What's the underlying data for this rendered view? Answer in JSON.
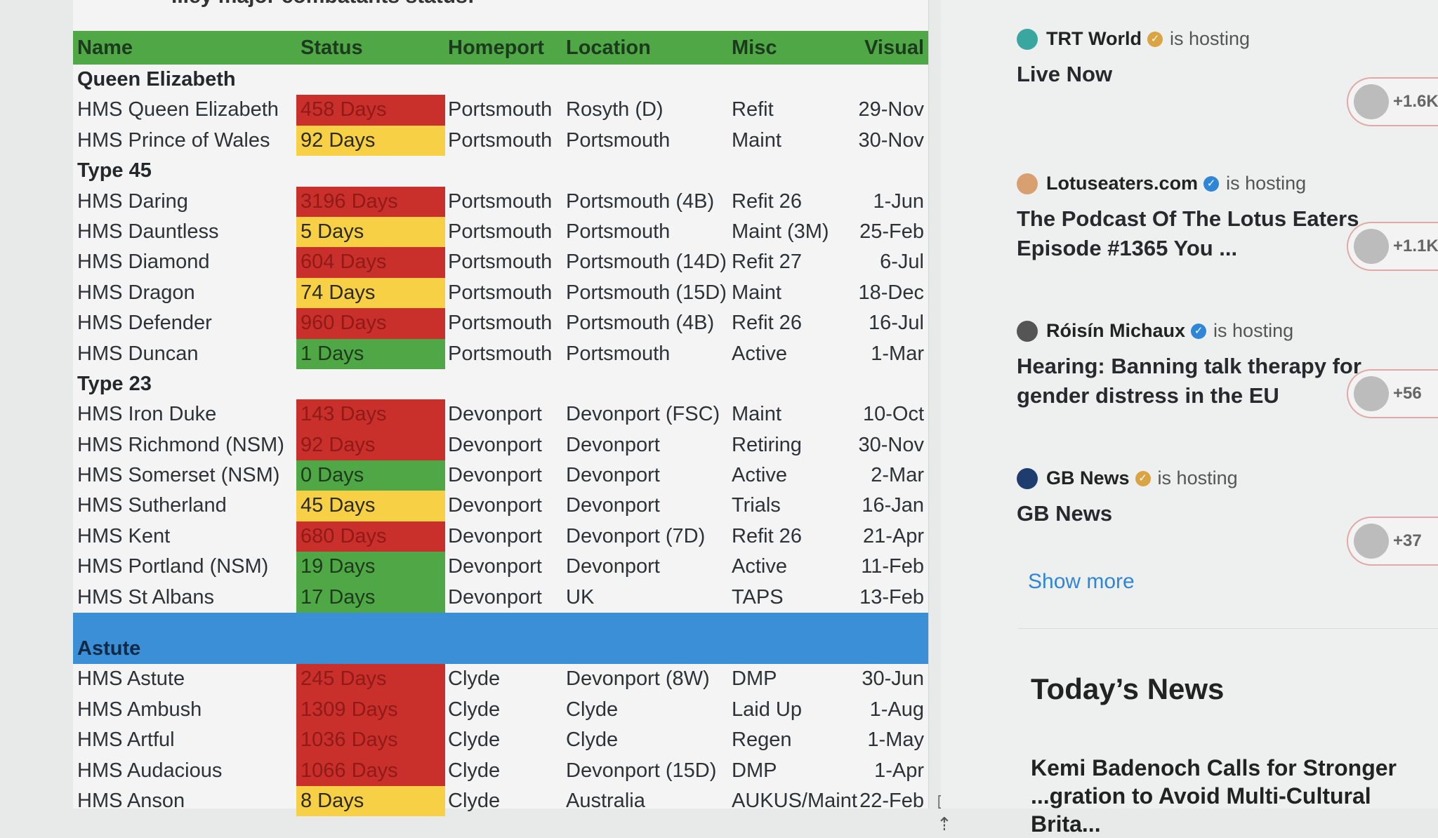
{
  "caption": "...ey major combatants status:",
  "table": {
    "headers": [
      "Name",
      "Status",
      "Homeport",
      "Location",
      "Misc",
      "Visual"
    ],
    "rows": [
      {
        "kind": "group",
        "name": "Queen Elizabeth"
      },
      {
        "kind": "ship",
        "name": "HMS Queen Elizabeth",
        "status": "458 Days",
        "level": "red",
        "homeport": "Portsmouth",
        "location": "Rosyth (D)",
        "misc": "Refit",
        "visual": "29-Nov"
      },
      {
        "kind": "ship",
        "name": "HMS Prince of Wales",
        "status": "92 Days",
        "level": "yellow",
        "homeport": "Portsmouth",
        "location": "Portsmouth",
        "misc": "Maint",
        "visual": "30-Nov"
      },
      {
        "kind": "group",
        "name": "Type 45"
      },
      {
        "kind": "ship",
        "name": "HMS Daring",
        "status": "3196 Days",
        "level": "red",
        "homeport": "Portsmouth",
        "location": "Portsmouth (4B)",
        "misc": "Refit 26",
        "visual": "1-Jun"
      },
      {
        "kind": "ship",
        "name": "HMS Dauntless",
        "status": "5 Days",
        "level": "yellow",
        "homeport": "Portsmouth",
        "location": "Portsmouth",
        "misc": "Maint (3M)",
        "visual": "25-Feb"
      },
      {
        "kind": "ship",
        "name": "HMS Diamond",
        "status": "604 Days",
        "level": "red",
        "homeport": "Portsmouth",
        "location": "Portsmouth (14D)",
        "misc": "Refit 27",
        "visual": "6-Jul"
      },
      {
        "kind": "ship",
        "name": "HMS Dragon",
        "status": "74 Days",
        "level": "yellow",
        "homeport": "Portsmouth",
        "location": "Portsmouth (15D)",
        "misc": "Maint",
        "visual": "18-Dec"
      },
      {
        "kind": "ship",
        "name": "HMS Defender",
        "status": "960 Days",
        "level": "red",
        "homeport": "Portsmouth",
        "location": "Portsmouth (4B)",
        "misc": "Refit 26",
        "visual": "16-Jul"
      },
      {
        "kind": "ship",
        "name": "HMS Duncan",
        "status": "1 Days",
        "level": "green",
        "homeport": "Portsmouth",
        "location": "Portsmouth",
        "misc": "Active",
        "visual": "1-Mar"
      },
      {
        "kind": "group",
        "name": "Type 23"
      },
      {
        "kind": "ship",
        "name": "HMS Iron Duke",
        "status": "143 Days",
        "level": "red",
        "homeport": "Devonport",
        "location": "Devonport (FSC)",
        "misc": "Maint",
        "visual": "10-Oct"
      },
      {
        "kind": "ship",
        "name": "HMS Richmond (NSM)",
        "status": "92 Days",
        "level": "red",
        "homeport": "Devonport",
        "location": "Devonport",
        "misc": "Retiring",
        "visual": "30-Nov"
      },
      {
        "kind": "ship",
        "name": "HMS Somerset (NSM)",
        "status": "0 Days",
        "level": "green",
        "homeport": "Devonport",
        "location": "Devonport",
        "misc": "Active",
        "visual": "2-Mar"
      },
      {
        "kind": "ship",
        "name": "HMS Sutherland",
        "status": "45 Days",
        "level": "yellow",
        "homeport": "Devonport",
        "location": "Devonport",
        "misc": "Trials",
        "visual": "16-Jan"
      },
      {
        "kind": "ship",
        "name": "HMS Kent",
        "status": "680 Days",
        "level": "red",
        "homeport": "Devonport",
        "location": "Devonport (7D)",
        "misc": "Refit 26",
        "visual": "21-Apr"
      },
      {
        "kind": "ship",
        "name": "HMS Portland (NSM)",
        "status": "19 Days",
        "level": "green",
        "homeport": "Devonport",
        "location": "Devonport",
        "misc": "Active",
        "visual": "11-Feb"
      },
      {
        "kind": "ship",
        "name": "HMS St Albans",
        "status": "17 Days",
        "level": "green",
        "homeport": "Devonport",
        "location": "UK",
        "misc": "TAPS",
        "visual": "13-Feb"
      },
      {
        "kind": "bluegroup",
        "name": "Astute"
      },
      {
        "kind": "ship",
        "name": "HMS Astute",
        "status": "245 Days",
        "level": "red",
        "homeport": "Clyde",
        "location": "Devonport (8W)",
        "misc": "DMP",
        "visual": "30-Jun"
      },
      {
        "kind": "ship",
        "name": "HMS Ambush",
        "status": "1309 Days",
        "level": "red",
        "homeport": "Clyde",
        "location": "Clyde",
        "misc": "Laid Up",
        "visual": "1-Aug"
      },
      {
        "kind": "ship",
        "name": "HMS Artful",
        "status": "1036 Days",
        "level": "red",
        "homeport": "Clyde",
        "location": "Clyde",
        "misc": "Regen",
        "visual": "1-May"
      },
      {
        "kind": "ship",
        "name": "HMS Audacious",
        "status": "1066 Days",
        "level": "red",
        "homeport": "Clyde",
        "location": "Devonport (15D)",
        "misc": "DMP",
        "visual": "1-Apr"
      },
      {
        "kind": "ship",
        "name": "HMS Anson",
        "status": "8 Days",
        "level": "yellow",
        "homeport": "Clyde",
        "location": "Australia",
        "misc": "AUKUS/Maint",
        "visual": "22-Feb"
      }
    ]
  },
  "colors": {
    "red": "#c9302c",
    "yellow": "#f7d046",
    "green": "#4fa745",
    "blue": "#3a8fd6"
  },
  "spaces": {
    "hosting_label": "is hosting",
    "items": [
      {
        "host": "TRT World",
        "avatar_color": "#3aa6a0",
        "verified": "gold",
        "title": "Live Now",
        "listeners": "+1.6K"
      },
      {
        "host": "Lotuseaters.com",
        "avatar_color": "#d8a070",
        "verified": "blue",
        "title": "The Podcast Of The Lotus Eaters Episode #1365 You ...",
        "listeners": "+1.1K"
      },
      {
        "host": "Róisín Michaux",
        "avatar_color": "#555555",
        "verified": "blue",
        "title": "Hearing: Banning talk therapy for gender distress in the EU",
        "listeners": "+56"
      },
      {
        "host": "GB News",
        "avatar_color": "#1e3d6e",
        "verified": "gold",
        "title": "GB News",
        "listeners": "+37"
      }
    ],
    "show_more": "Show more"
  },
  "news": {
    "section_title": "Today’s News",
    "headline": "Kemi Badenoch Calls for Stronger ...gration to Avoid Multi-Cultural Brita..."
  }
}
